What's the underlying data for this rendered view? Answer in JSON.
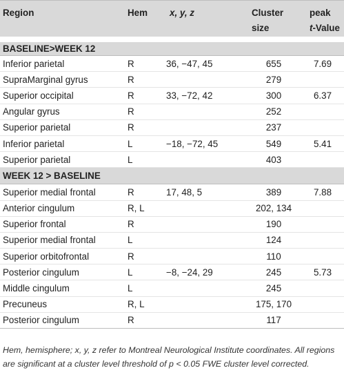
{
  "columns": {
    "region": "Region",
    "hem": "Hem",
    "xyz": "x, y, z",
    "cluster_line1": "Cluster",
    "cluster_line2": "size",
    "peak_line1": "peak",
    "peak_line2_italic": "t",
    "peak_line2_rest": "-Value"
  },
  "sections": [
    {
      "label": "BASELINE>WEEK 12",
      "rows": [
        {
          "region": "Inferior parietal",
          "hem": "R",
          "xyz": "36, −47, 45",
          "cluster": "655",
          "peak": "7.69"
        },
        {
          "region": "SupraMarginal gyrus",
          "hem": "R",
          "xyz": "",
          "cluster": "279",
          "peak": ""
        },
        {
          "region": "Superior occipital",
          "hem": "R",
          "xyz": "33, −72, 42",
          "cluster": "300",
          "peak": "6.37"
        },
        {
          "region": "Angular gyrus",
          "hem": "R",
          "xyz": "",
          "cluster": "252",
          "peak": ""
        },
        {
          "region": "Superior parietal",
          "hem": "R",
          "xyz": "",
          "cluster": "237",
          "peak": ""
        },
        {
          "region": "Inferior parietal",
          "hem": "L",
          "xyz": "−18, −72, 45",
          "cluster": "549",
          "peak": "5.41"
        },
        {
          "region": "Superior parietal",
          "hem": "L",
          "xyz": "",
          "cluster": "403",
          "peak": ""
        }
      ]
    },
    {
      "label": "WEEK 12 > BASELINE",
      "rows": [
        {
          "region": "Superior medial frontal",
          "hem": "R",
          "xyz": "17, 48, 5",
          "cluster": "389",
          "peak": "7.88"
        },
        {
          "region": "Anterior cingulum",
          "hem": "R, L",
          "xyz": "",
          "cluster": "202, 134",
          "peak": ""
        },
        {
          "region": "Superior frontal",
          "hem": "R",
          "xyz": "",
          "cluster": "190",
          "peak": ""
        },
        {
          "region": "Superior medial frontal",
          "hem": "L",
          "xyz": "",
          "cluster": "124",
          "peak": ""
        },
        {
          "region": "Superior orbitofrontal",
          "hem": "R",
          "xyz": "",
          "cluster": "110",
          "peak": ""
        },
        {
          "region": "Posterior cingulum",
          "hem": "L",
          "xyz": "−8, −24, 29",
          "cluster": "245",
          "peak": "5.73"
        },
        {
          "region": "Middle cingulum",
          "hem": "L",
          "xyz": "",
          "cluster": "245",
          "peak": ""
        },
        {
          "region": "Precuneus",
          "hem": "R, L",
          "xyz": "",
          "cluster": "175, 170",
          "peak": ""
        },
        {
          "region": "Posterior cingulum",
          "hem": "R",
          "xyz": "",
          "cluster": "117",
          "peak": ""
        }
      ]
    }
  ],
  "footnote": "Hem, hemisphere; x, y, z refer to Montreal Neurological Institute coordinates. All regions are significant at a cluster level threshold of p < 0.05 FWE cluster level corrected."
}
